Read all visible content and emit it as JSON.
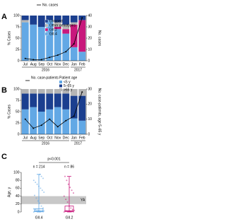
{
  "chart_data": [
    {
      "panel": "A",
      "type": "bar",
      "stacked": true,
      "y_label": "% Cases",
      "y2_label": "No. cases",
      "categories": [
        "Jul",
        "Aug",
        "Sep",
        "Oct",
        "Nov",
        "Dec",
        "Jan",
        "Feb"
      ],
      "x_groups": [
        {
          "label": "2016",
          "count": 6
        },
        {
          "label": "2017",
          "count": 2
        }
      ],
      "ylim": [
        0,
        100
      ],
      "yticks": [
        0,
        25,
        50,
        75,
        100
      ],
      "y2lim": [
        0,
        40
      ],
      "y2ticks": [
        0,
        10,
        20,
        30,
        40
      ],
      "series": [
        {
          "name": "GII.4",
          "color": "#62a8e5",
          "values": [
            85,
            80,
            75,
            90,
            70,
            60,
            30,
            20
          ]
        },
        {
          "name": "GII.2",
          "color": "#c8187c",
          "values": [
            0,
            0,
            0,
            0,
            5,
            10,
            50,
            70
          ]
        },
        {
          "name": "Other genotypes",
          "color": "#b5b5b5",
          "values": [
            5,
            0,
            0,
            0,
            10,
            10,
            5,
            0
          ]
        },
        {
          "name": "Untyped",
          "color": "#1b3f8f",
          "values": [
            10,
            20,
            25,
            10,
            15,
            20,
            15,
            10
          ]
        },
        {
          "name": "No. cases",
          "type": "line",
          "axis": "y2",
          "color": "#000000",
          "values": [
            2,
            1,
            1,
            3,
            5,
            8,
            15,
            38
          ]
        }
      ]
    },
    {
      "panel": "B",
      "type": "bar",
      "stacked": true,
      "y_label": "% Cases",
      "y2_label": "No. case-patients, age 5–65 y",
      "legend_title": "Patient age",
      "categories": [
        "Jul",
        "Aug",
        "Sep",
        "Oct",
        "Nov",
        "Dec",
        "Jan",
        "Feb"
      ],
      "x_groups": [
        {
          "label": "2016",
          "count": 6
        },
        {
          "label": "2017",
          "count": 2
        }
      ],
      "ylim": [
        0,
        100
      ],
      "yticks": [
        0,
        25,
        50,
        75,
        100
      ],
      "y2lim": [
        0,
        30
      ],
      "y2ticks": [
        0,
        10,
        20,
        30
      ],
      "series": [
        {
          "name": "<5 y",
          "color": "#62a8e5",
          "values": [
            55,
            60,
            50,
            55,
            60,
            55,
            35,
            30
          ]
        },
        {
          "name": "5–65 y",
          "color": "#1b3f8f",
          "values": [
            35,
            30,
            40,
            35,
            30,
            35,
            50,
            55
          ]
        },
        {
          "name": ">65 y",
          "color": "#b5b5b5",
          "values": [
            10,
            10,
            10,
            10,
            10,
            10,
            15,
            15
          ]
        },
        {
          "name": "No. case-patients",
          "type": "line",
          "axis": "y2",
          "color": "#000000",
          "values": [
            10,
            4,
            6,
            10,
            5,
            9,
            12,
            28
          ]
        }
      ]
    },
    {
      "panel": "C",
      "type": "box",
      "y_label": "Age, y",
      "annotation": "p<0.001",
      "categories": [
        "GII.4",
        "GII.2"
      ],
      "n_labels": [
        "n = 214",
        "n = 86"
      ],
      "colors": [
        "#62a8e5",
        "#c8187c"
      ],
      "band": {
        "range": [
          20,
          40
        ],
        "label": "YA"
      },
      "ylim": [
        0,
        100
      ],
      "yticks": [
        0,
        20,
        40,
        60,
        80,
        100
      ],
      "boxes": [
        {
          "min": 0,
          "q1": 1,
          "median": 2,
          "q3": 8,
          "max": 95
        },
        {
          "min": 0,
          "q1": 1,
          "median": 3,
          "q3": 15,
          "max": 90
        }
      ],
      "points": [
        [
          0,
          0.5,
          1,
          1,
          1.5,
          2,
          2,
          2.5,
          3,
          3,
          4,
          5,
          6,
          8,
          10,
          15,
          22,
          28,
          35,
          42,
          50,
          55,
          60,
          65,
          70,
          75,
          80,
          85,
          90,
          95
        ],
        [
          0,
          0.5,
          1,
          1.5,
          2,
          3,
          3,
          4,
          6,
          10,
          15,
          25,
          32,
          40,
          48,
          55,
          62,
          70,
          80,
          90
        ]
      ]
    }
  ]
}
